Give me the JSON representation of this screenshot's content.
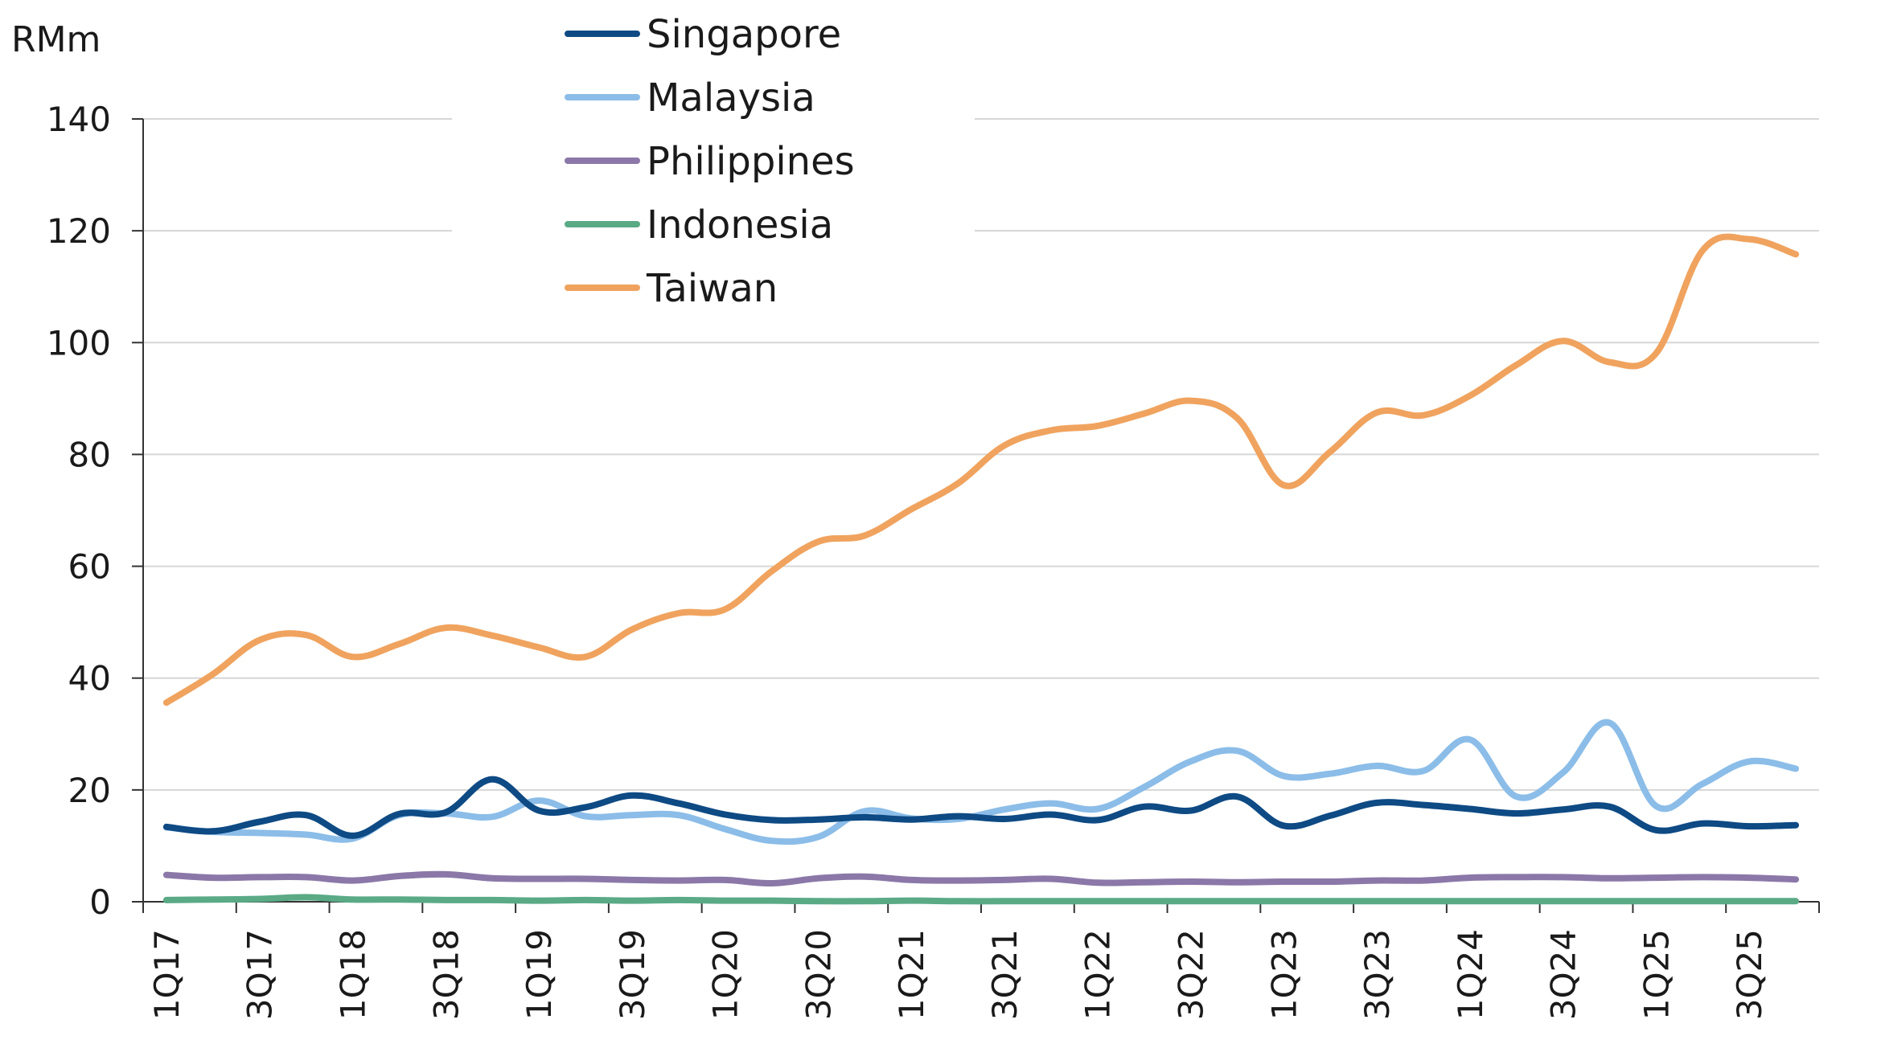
{
  "chart_data": {
    "type": "line",
    "ylabel": "RMm",
    "ylim": [
      0,
      140
    ],
    "yticks": [
      "0",
      "20",
      "40",
      "60",
      "80",
      "100",
      "120",
      "140"
    ],
    "xtick_labels": [
      "1Q17",
      "3Q17",
      "1Q18",
      "3Q18",
      "1Q19",
      "3Q19",
      "1Q20",
      "3Q20",
      "1Q21",
      "3Q21",
      "1Q22",
      "3Q22",
      "1Q23",
      "3Q23",
      "1Q24",
      "3Q24",
      "1Q25",
      "3Q25"
    ],
    "grid": true,
    "legend_position": "top-center",
    "categories": [
      "1Q17",
      "2Q17",
      "3Q17",
      "4Q17",
      "1Q18",
      "2Q18",
      "3Q18",
      "4Q18",
      "1Q19",
      "2Q19",
      "3Q19",
      "4Q19",
      "1Q20",
      "2Q20",
      "3Q20",
      "4Q20",
      "1Q21",
      "2Q21",
      "3Q21",
      "4Q21",
      "1Q22",
      "2Q22",
      "3Q22",
      "4Q22",
      "1Q23",
      "2Q23",
      "3Q23",
      "4Q23",
      "1Q24",
      "2Q24",
      "3Q24",
      "4Q24",
      "1Q25",
      "2Q25",
      "3Q25",
      "4Q25"
    ],
    "series": [
      {
        "name": "Singapore",
        "color": "#0e4a84",
        "values": [
          13.4,
          12.6,
          14.3,
          15.5,
          11.8,
          15.7,
          16.0,
          21.9,
          16.3,
          16.9,
          19.0,
          17.6,
          15.6,
          14.6,
          14.7,
          15.1,
          14.7,
          15.3,
          14.8,
          15.6,
          14.6,
          17.0,
          16.3,
          18.8,
          13.6,
          15.4,
          17.7,
          17.3,
          16.6,
          15.8,
          16.5,
          17.0,
          12.8,
          14.0,
          13.5,
          13.7
        ]
      },
      {
        "name": "Malaysia",
        "color": "#8bbde8",
        "values": [
          13.3,
          12.5,
          12.3,
          12.0,
          11.3,
          15.5,
          15.8,
          15.2,
          18.1,
          15.3,
          15.5,
          15.5,
          13.0,
          10.9,
          11.6,
          16.2,
          14.9,
          14.8,
          16.5,
          17.6,
          16.6,
          20.5,
          25.1,
          27.0,
          22.5,
          22.9,
          24.3,
          23.4,
          29.0,
          18.8,
          23.1,
          32.0,
          17.1,
          21.1,
          25.1,
          23.8
        ]
      },
      {
        "name": "Philippines",
        "color": "#8b78a8",
        "values": [
          4.8,
          4.3,
          4.4,
          4.4,
          3.8,
          4.6,
          4.9,
          4.2,
          4.1,
          4.1,
          3.9,
          3.8,
          3.9,
          3.3,
          4.2,
          4.5,
          3.9,
          3.8,
          3.9,
          4.1,
          3.4,
          3.5,
          3.6,
          3.5,
          3.6,
          3.6,
          3.8,
          3.8,
          4.3,
          4.4,
          4.4,
          4.2,
          4.3,
          4.4,
          4.3,
          4.0
        ]
      },
      {
        "name": "Indonesia",
        "color": "#5aaa86",
        "values": [
          0.3,
          0.4,
          0.5,
          0.8,
          0.4,
          0.4,
          0.3,
          0.3,
          0.2,
          0.3,
          0.2,
          0.3,
          0.2,
          0.2,
          0.1,
          0.1,
          0.2,
          0.1,
          0.1,
          0.1,
          0.1,
          0.1,
          0.1,
          0.1,
          0.1,
          0.1,
          0.1,
          0.1,
          0.1,
          0.1,
          0.1,
          0.1,
          0.1,
          0.1,
          0.1,
          0.1
        ]
      },
      {
        "name": "Taiwan",
        "color": "#f0a35e",
        "values": [
          35.6,
          40.7,
          46.8,
          47.7,
          43.8,
          46.1,
          49.0,
          47.6,
          45.5,
          43.8,
          48.7,
          51.6,
          52.3,
          59.1,
          64.4,
          65.5,
          70.2,
          74.8,
          81.6,
          84.3,
          85.1,
          87.3,
          89.6,
          86.5,
          74.5,
          80.5,
          87.5,
          87.0,
          90.5,
          96.0,
          100.3,
          96.5,
          98.1,
          116.5,
          118.5,
          115.8
        ]
      }
    ]
  }
}
